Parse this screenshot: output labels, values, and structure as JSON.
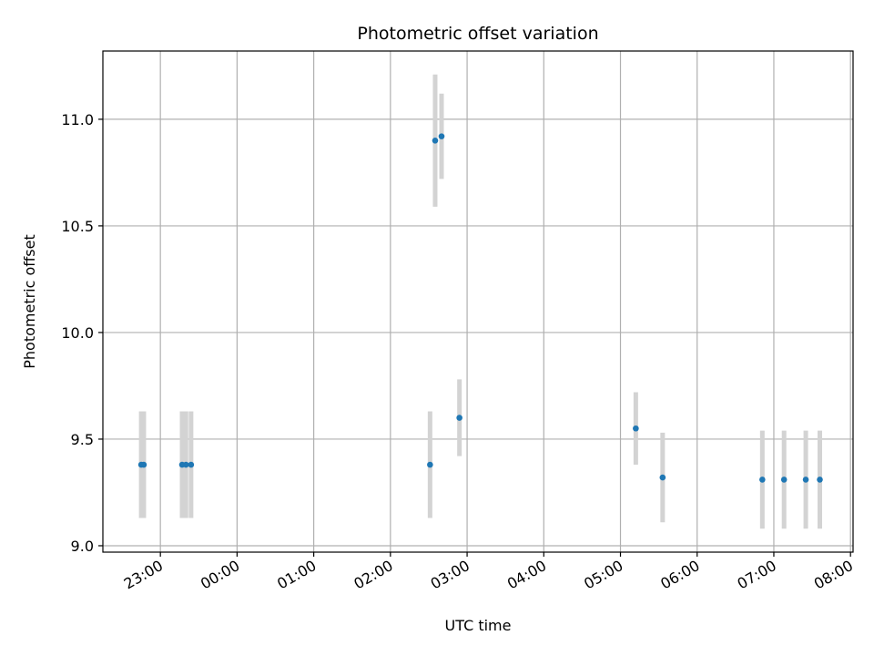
{
  "chart_data": {
    "type": "scatter",
    "title": "Photometric offset variation",
    "xlabel": "UTC time",
    "ylabel": "Photometric offset",
    "grid": true,
    "legend": "none",
    "x_tick_labels": [
      "23:00",
      "00:00",
      "01:00",
      "02:00",
      "03:00",
      "04:00",
      "05:00",
      "06:00",
      "07:00",
      "08:00"
    ],
    "y_tick_labels": [
      "9.0",
      "9.5",
      "10.0",
      "10.5",
      "11.0"
    ],
    "y_ticks": [
      9.0,
      9.5,
      10.0,
      10.5,
      11.0
    ],
    "ylim": [
      8.97,
      11.32
    ],
    "xlim": [
      "22:15",
      "08:02"
    ],
    "series": [
      {
        "color": "#1f77b4",
        "errorbar_color": "#d3d3d3",
        "points": [
          {
            "x": "22:45",
            "y": 9.38,
            "err": 0.25
          },
          {
            "x": "22:47",
            "y": 9.38,
            "err": 0.25
          },
          {
            "x": "23:17",
            "y": 9.38,
            "err": 0.25
          },
          {
            "x": "23:20",
            "y": 9.38,
            "err": 0.25
          },
          {
            "x": "23:24",
            "y": 9.38,
            "err": 0.25
          },
          {
            "x": "02:31",
            "y": 9.38,
            "err": 0.25
          },
          {
            "x": "02:35",
            "y": 10.9,
            "err": 0.31
          },
          {
            "x": "02:40",
            "y": 10.92,
            "err": 0.2
          },
          {
            "x": "02:54",
            "y": 9.6,
            "err": 0.18
          },
          {
            "x": "05:12",
            "y": 9.55,
            "err": 0.17
          },
          {
            "x": "05:33",
            "y": 9.32,
            "err": 0.21
          },
          {
            "x": "06:51",
            "y": 9.31,
            "err": 0.23
          },
          {
            "x": "07:08",
            "y": 9.31,
            "err": 0.23
          },
          {
            "x": "07:25",
            "y": 9.31,
            "err": 0.23
          },
          {
            "x": "07:36",
            "y": 9.31,
            "err": 0.23
          }
        ]
      }
    ]
  }
}
